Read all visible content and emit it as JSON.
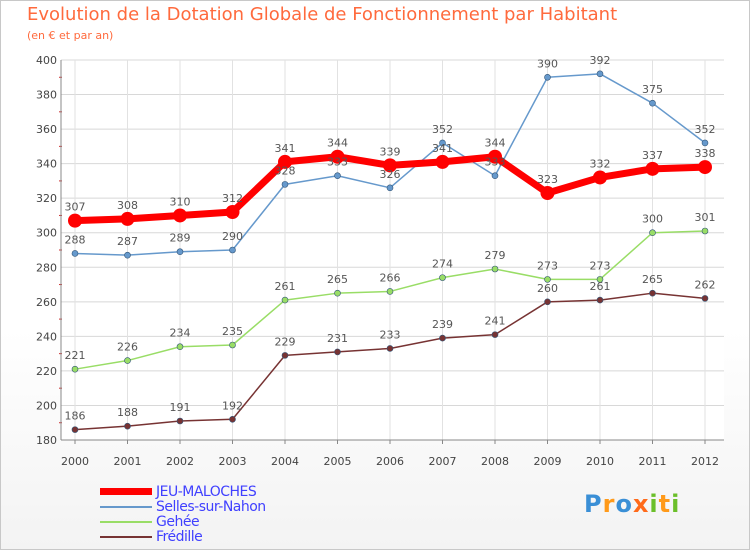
{
  "header": {
    "title": "Evolution de la Dotation Globale de Fonctionnement par Habitant",
    "subtitle": "(en € et par an)"
  },
  "logo": {
    "text": "Proxiti",
    "letters": [
      {
        "char": "P",
        "color": "#3a8fd6"
      },
      {
        "char": "r",
        "color": "#ff9a1a"
      },
      {
        "char": "o",
        "color": "#3a8fd6"
      },
      {
        "char": "x",
        "color": "#ff6a1a"
      },
      {
        "char": "i",
        "color": "#6bbf2a"
      },
      {
        "char": "t",
        "color": "#ff9a1a"
      },
      {
        "char": "i",
        "color": "#6bbf2a"
      }
    ]
  },
  "chart_data": {
    "type": "line",
    "x": [
      "2000",
      "2001",
      "2002",
      "2003",
      "2004",
      "2005",
      "2006",
      "2007",
      "2008",
      "2009",
      "2010",
      "2011",
      "2012"
    ],
    "ylim": [
      180,
      400
    ],
    "yticks": [
      180,
      200,
      220,
      240,
      260,
      280,
      300,
      320,
      340,
      360,
      380,
      400
    ],
    "grid": true,
    "legend_position": "bottom-left",
    "series": [
      {
        "name": "JEU-MALOCHES",
        "color": "#ff0000",
        "width": 7,
        "marker": 7,
        "values": [
          307,
          308,
          310,
          312,
          341,
          344,
          339,
          341,
          344,
          323,
          332,
          337,
          338
        ]
      },
      {
        "name": "Selles-sur-Nahon",
        "color": "#6699cc",
        "width": 1.5,
        "marker": 3,
        "values": [
          288,
          287,
          289,
          290,
          328,
          333,
          326,
          352,
          333,
          390,
          392,
          375,
          352
        ]
      },
      {
        "name": "Gehée",
        "color": "#99dd66",
        "width": 1.5,
        "marker": 3,
        "values": [
          221,
          226,
          234,
          235,
          261,
          265,
          266,
          274,
          279,
          273,
          273,
          300,
          301
        ]
      },
      {
        "name": "Frédille",
        "color": "#773333",
        "width": 1.5,
        "marker": 3,
        "values": [
          186,
          188,
          191,
          192,
          229,
          231,
          233,
          239,
          241,
          260,
          261,
          265,
          262
        ]
      }
    ]
  }
}
